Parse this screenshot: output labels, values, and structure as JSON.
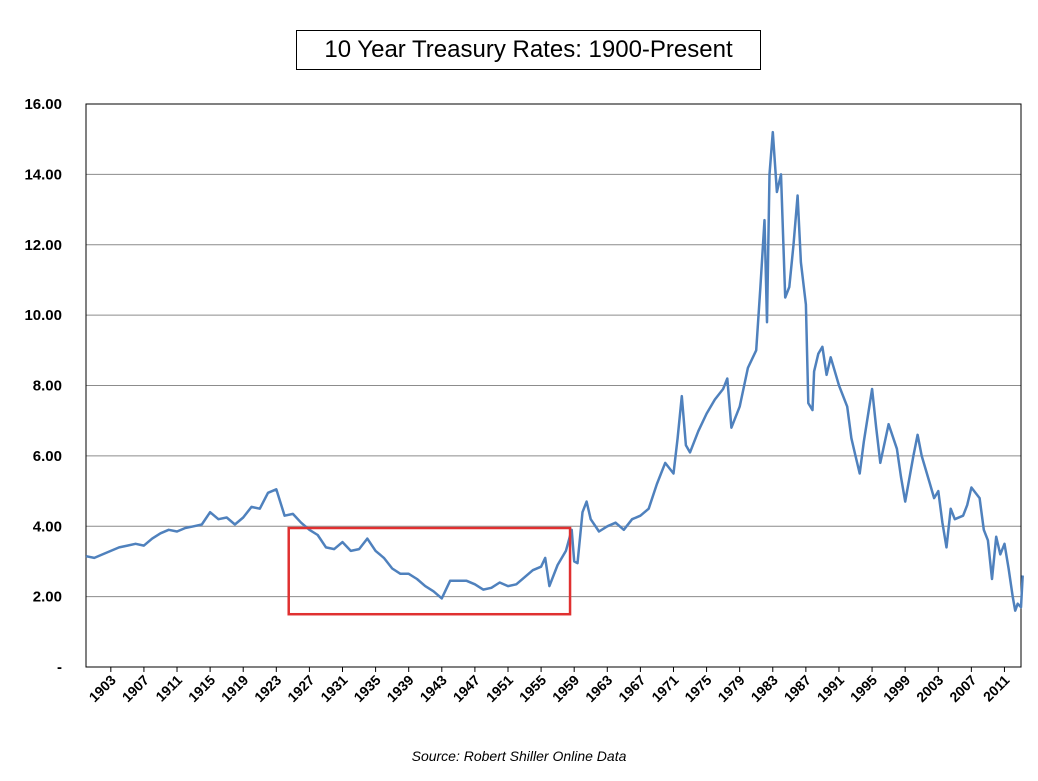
{
  "chart_data": {
    "type": "line",
    "title": "10 Year Treasury Rates: 1900-Present",
    "source": "Source: Robert Shiller Online Data",
    "ylim": [
      0,
      16
    ],
    "ytick_labels": [
      "-",
      "2.00",
      "4.00",
      "6.00",
      "8.00",
      "10.00",
      "12.00",
      "14.00",
      "16.00"
    ],
    "yticks": [
      0,
      2,
      4,
      6,
      8,
      10,
      12,
      14,
      16
    ],
    "xlim": [
      1900,
      2013
    ],
    "xticks": [
      1903,
      1907,
      1911,
      1915,
      1919,
      1923,
      1927,
      1931,
      1935,
      1939,
      1943,
      1947,
      1951,
      1955,
      1959,
      1963,
      1967,
      1971,
      1975,
      1979,
      1983,
      1987,
      1991,
      1995,
      1999,
      2003,
      2007,
      2011
    ],
    "grid": "horizontal",
    "highlight": {
      "x": [
        1924.5,
        1958.5
      ],
      "y": [
        1.5,
        3.95
      ],
      "color": "#e03030"
    },
    "series": [
      {
        "color": "#4f81bd",
        "points": [
          [
            1900,
            3.15
          ],
          [
            1901,
            3.1
          ],
          [
            1902,
            3.2
          ],
          [
            1903,
            3.3
          ],
          [
            1904,
            3.4
          ],
          [
            1905,
            3.45
          ],
          [
            1906,
            3.5
          ],
          [
            1907,
            3.45
          ],
          [
            1908,
            3.65
          ],
          [
            1909,
            3.8
          ],
          [
            1910,
            3.9
          ],
          [
            1911,
            3.85
          ],
          [
            1912,
            3.95
          ],
          [
            1913,
            4.0
          ],
          [
            1914,
            4.05
          ],
          [
            1915,
            4.4
          ],
          [
            1916,
            4.2
          ],
          [
            1917,
            4.25
          ],
          [
            1918,
            4.05
          ],
          [
            1919,
            4.25
          ],
          [
            1920,
            4.55
          ],
          [
            1921,
            4.5
          ],
          [
            1922,
            4.95
          ],
          [
            1923,
            5.05
          ],
          [
            1924,
            4.3
          ],
          [
            1925,
            4.35
          ],
          [
            1926,
            4.1
          ],
          [
            1927,
            3.9
          ],
          [
            1928,
            3.75
          ],
          [
            1929,
            3.4
          ],
          [
            1930,
            3.35
          ],
          [
            1931,
            3.55
          ],
          [
            1932,
            3.3
          ],
          [
            1933,
            3.35
          ],
          [
            1934,
            3.65
          ],
          [
            1935,
            3.3
          ],
          [
            1936,
            3.1
          ],
          [
            1937,
            2.8
          ],
          [
            1938,
            2.65
          ],
          [
            1939,
            2.65
          ],
          [
            1940,
            2.5
          ],
          [
            1941,
            2.3
          ],
          [
            1942,
            2.15
          ],
          [
            1943,
            1.95
          ],
          [
            1944,
            2.45
          ],
          [
            1945,
            2.45
          ],
          [
            1946,
            2.45
          ],
          [
            1947,
            2.35
          ],
          [
            1948,
            2.2
          ],
          [
            1949,
            2.25
          ],
          [
            1950,
            2.4
          ],
          [
            1951,
            2.3
          ],
          [
            1952,
            2.35
          ],
          [
            1953,
            2.55
          ],
          [
            1954,
            2.75
          ],
          [
            1955,
            2.85
          ],
          [
            1955.5,
            3.1
          ],
          [
            1956,
            2.3
          ],
          [
            1957,
            2.9
          ],
          [
            1958,
            3.3
          ],
          [
            1958.7,
            3.9
          ],
          [
            1959,
            3.0
          ],
          [
            1959.4,
            2.95
          ],
          [
            1960,
            4.4
          ],
          [
            1960.5,
            4.7
          ],
          [
            1961,
            4.2
          ],
          [
            1962,
            3.85
          ],
          [
            1963,
            4.0
          ],
          [
            1964,
            4.1
          ],
          [
            1965,
            3.9
          ],
          [
            1966,
            4.2
          ],
          [
            1967,
            4.3
          ],
          [
            1968,
            4.5
          ],
          [
            1969,
            5.2
          ],
          [
            1970,
            5.8
          ],
          [
            1971,
            5.5
          ],
          [
            1971.5,
            6.5
          ],
          [
            1972,
            7.7
          ],
          [
            1972.5,
            6.3
          ],
          [
            1973,
            6.1
          ],
          [
            1974,
            6.7
          ],
          [
            1975,
            7.2
          ],
          [
            1976,
            7.6
          ],
          [
            1977,
            7.9
          ],
          [
            1977.5,
            8.2
          ],
          [
            1978,
            6.8
          ],
          [
            1979,
            7.4
          ],
          [
            1980,
            8.5
          ],
          [
            1981,
            9.0
          ],
          [
            1981.5,
            10.8
          ],
          [
            1982,
            12.7
          ],
          [
            1982.3,
            9.8
          ],
          [
            1982.6,
            14.0
          ],
          [
            1983,
            15.2
          ],
          [
            1983.5,
            13.5
          ],
          [
            1984,
            14.0
          ],
          [
            1984.5,
            10.5
          ],
          [
            1985,
            10.8
          ],
          [
            1985.5,
            12.0
          ],
          [
            1986,
            13.4
          ],
          [
            1986.4,
            11.5
          ],
          [
            1987,
            10.3
          ],
          [
            1987.3,
            7.5
          ],
          [
            1987.8,
            7.3
          ],
          [
            1988,
            8.4
          ],
          [
            1988.5,
            8.9
          ],
          [
            1989,
            9.1
          ],
          [
            1989.5,
            8.3
          ],
          [
            1990,
            8.8
          ],
          [
            1991,
            8.0
          ],
          [
            1992,
            7.4
          ],
          [
            1992.5,
            6.5
          ],
          [
            1993,
            6.0
          ],
          [
            1993.5,
            5.5
          ],
          [
            1994,
            6.4
          ],
          [
            1995,
            7.9
          ],
          [
            1995.5,
            6.8
          ],
          [
            1996,
            5.8
          ],
          [
            1997,
            6.9
          ],
          [
            1998,
            6.2
          ],
          [
            1998.5,
            5.4
          ],
          [
            1999,
            4.7
          ],
          [
            2000,
            6.0
          ],
          [
            2000.5,
            6.6
          ],
          [
            2001,
            6.0
          ],
          [
            2002,
            5.2
          ],
          [
            2002.5,
            4.8
          ],
          [
            2003,
            5.0
          ],
          [
            2003.5,
            4.1
          ],
          [
            2004,
            3.4
          ],
          [
            2004.5,
            4.5
          ],
          [
            2005,
            4.2
          ],
          [
            2006,
            4.3
          ],
          [
            2006.5,
            4.6
          ],
          [
            2007,
            5.1
          ],
          [
            2008,
            4.8
          ],
          [
            2008.5,
            3.9
          ],
          [
            2009,
            3.6
          ],
          [
            2009.5,
            2.5
          ],
          [
            2010,
            3.7
          ],
          [
            2010.5,
            3.2
          ],
          [
            2011,
            3.5
          ],
          [
            2011.5,
            2.8
          ],
          [
            2012,
            2.0
          ],
          [
            2012.3,
            1.6
          ],
          [
            2012.6,
            1.8
          ],
          [
            2013,
            1.7
          ],
          [
            2013.2,
            2.6
          ]
        ]
      }
    ]
  }
}
